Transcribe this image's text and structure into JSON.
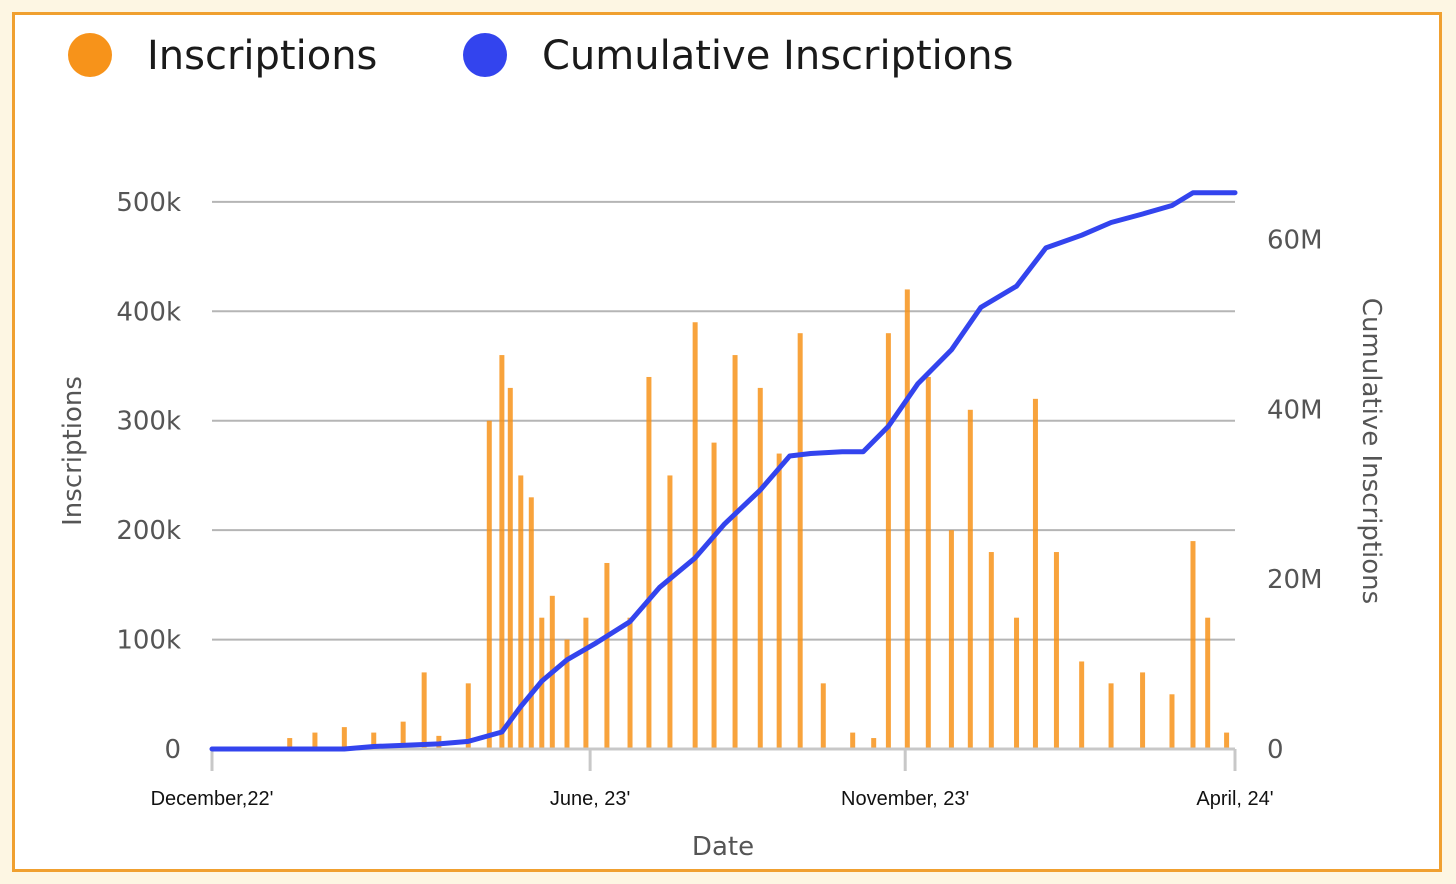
{
  "chart_data": {
    "type": "bar+line",
    "title": "",
    "legend": [
      {
        "name": "Inscriptions",
        "color": "#f7931a",
        "marker": "circle"
      },
      {
        "name": "Cumulative Inscriptions",
        "color": "#3344ee",
        "marker": "circle"
      }
    ],
    "legend_placement": "top-left",
    "grid": true,
    "xlabel": "Date",
    "ylabel_left": "Inscriptions",
    "ylabel_right": "Cumulative Inscriptions",
    "x_range": [
      "2022-12-14",
      "2024-04-14"
    ],
    "x_ticks": [
      {
        "label": "December,22'",
        "date": "2022-12-14"
      },
      {
        "label": "June, 23'",
        "date": "2023-06-12"
      },
      {
        "label": "November, 23'",
        "date": "2023-11-09"
      },
      {
        "label": "April, 24'",
        "date": "2024-04-14"
      }
    ],
    "ylim_left": [
      0,
      520000
    ],
    "y_ticks_left": [
      {
        "value": 0,
        "label": "0"
      },
      {
        "value": 100000,
        "label": "100k"
      },
      {
        "value": 200000,
        "label": "200k"
      },
      {
        "value": 300000,
        "label": "300k"
      },
      {
        "value": 400000,
        "label": "400k"
      },
      {
        "value": 500000,
        "label": "500k"
      }
    ],
    "ylim_right": [
      0,
      67000000
    ],
    "y_ticks_right": [
      {
        "value": 0,
        "label": "0"
      },
      {
        "value": 20000000,
        "label": "20M"
      },
      {
        "value": 40000000,
        "label": "40M"
      },
      {
        "value": 60000000,
        "label": "60M"
      }
    ],
    "series": [
      {
        "name": "Inscriptions",
        "type": "bar",
        "axis": "left",
        "color": "#f7931a",
        "x": [
          "2023-01-20",
          "2023-02-01",
          "2023-02-15",
          "2023-03-01",
          "2023-03-15",
          "2023-03-25",
          "2023-04-01",
          "2023-04-15",
          "2023-04-25",
          "2023-05-01",
          "2023-05-05",
          "2023-05-10",
          "2023-05-15",
          "2023-05-20",
          "2023-05-25",
          "2023-06-01",
          "2023-06-10",
          "2023-06-20",
          "2023-07-01",
          "2023-07-10",
          "2023-07-20",
          "2023-08-01",
          "2023-08-10",
          "2023-08-20",
          "2023-09-01",
          "2023-09-10",
          "2023-09-20",
          "2023-10-01",
          "2023-10-15",
          "2023-10-25",
          "2023-11-01",
          "2023-11-10",
          "2023-11-20",
          "2023-12-01",
          "2023-12-10",
          "2023-12-20",
          "2024-01-01",
          "2024-01-10",
          "2024-01-20",
          "2024-02-01",
          "2024-02-15",
          "2024-03-01",
          "2024-03-15",
          "2024-03-25",
          "2024-04-01",
          "2024-04-10"
        ],
        "values": [
          10000,
          15000,
          20000,
          15000,
          25000,
          70000,
          12000,
          60000,
          300000,
          360000,
          330000,
          250000,
          230000,
          120000,
          140000,
          100000,
          120000,
          170000,
          120000,
          340000,
          250000,
          390000,
          280000,
          360000,
          330000,
          270000,
          380000,
          60000,
          15000,
          10000,
          380000,
          420000,
          340000,
          200000,
          310000,
          180000,
          120000,
          320000,
          180000,
          80000,
          60000,
          70000,
          50000,
          190000,
          120000,
          15000
        ]
      },
      {
        "name": "Cumulative Inscriptions",
        "type": "line",
        "axis": "right",
        "color": "#3344ee",
        "x": [
          "2022-12-14",
          "2023-02-15",
          "2023-03-01",
          "2023-04-01",
          "2023-04-15",
          "2023-05-01",
          "2023-05-10",
          "2023-05-20",
          "2023-06-01",
          "2023-06-15",
          "2023-07-01",
          "2023-07-15",
          "2023-08-01",
          "2023-08-15",
          "2023-09-01",
          "2023-09-15",
          "2023-09-25",
          "2023-10-10",
          "2023-10-20",
          "2023-11-01",
          "2023-11-15",
          "2023-12-01",
          "2023-12-15",
          "2024-01-01",
          "2024-01-15",
          "2024-02-01",
          "2024-02-15",
          "2024-03-01",
          "2024-03-15",
          "2024-03-25",
          "2024-04-14"
        ],
        "values": [
          0,
          0,
          300000,
          600000,
          900000,
          2000000,
          5000000,
          8000000,
          10500000,
          12500000,
          15000000,
          19000000,
          22500000,
          26500000,
          30500000,
          34500000,
          34800000,
          35000000,
          35000000,
          38000000,
          43000000,
          47000000,
          52000000,
          54500000,
          59000000,
          60500000,
          62000000,
          63000000,
          64000000,
          65500000,
          65500000
        ]
      }
    ]
  }
}
